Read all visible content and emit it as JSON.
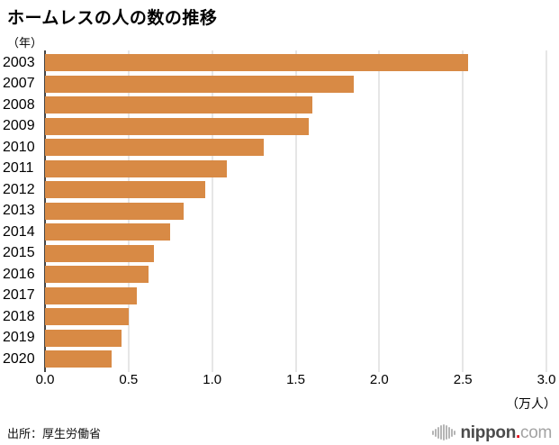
{
  "title": "ホームレスの人の数の推移",
  "source": {
    "text": "出所：厚生労働省"
  },
  "logo": {
    "name": "nippon",
    "dot": ".",
    "tld": "com"
  },
  "icons": {
    "logo_mark": "soundwave-bars-icon"
  },
  "colors": {
    "bar": "#d88a45",
    "grid": "#cccccc",
    "axis": "#444444",
    "logo_red": "#e60012",
    "background": "#ffffff"
  },
  "chart_data": {
    "type": "bar",
    "orientation": "horizontal",
    "title": "ホームレスの人の数の推移",
    "ylabel": "（年）",
    "xlabel": "（万人）",
    "categories": [
      "2003",
      "2007",
      "2008",
      "2009",
      "2010",
      "2011",
      "2012",
      "2013",
      "2014",
      "2015",
      "2016",
      "2017",
      "2018",
      "2019",
      "2020"
    ],
    "values": [
      2.53,
      1.85,
      1.6,
      1.58,
      1.31,
      1.09,
      0.96,
      0.83,
      0.75,
      0.65,
      0.62,
      0.55,
      0.5,
      0.46,
      0.4
    ],
    "x_ticks": [
      "0.0",
      "0.5",
      "1.0",
      "1.5",
      "2.0",
      "2.5",
      "3.0"
    ],
    "xlim": [
      0,
      3.0
    ],
    "grid": true,
    "legend": "none"
  }
}
